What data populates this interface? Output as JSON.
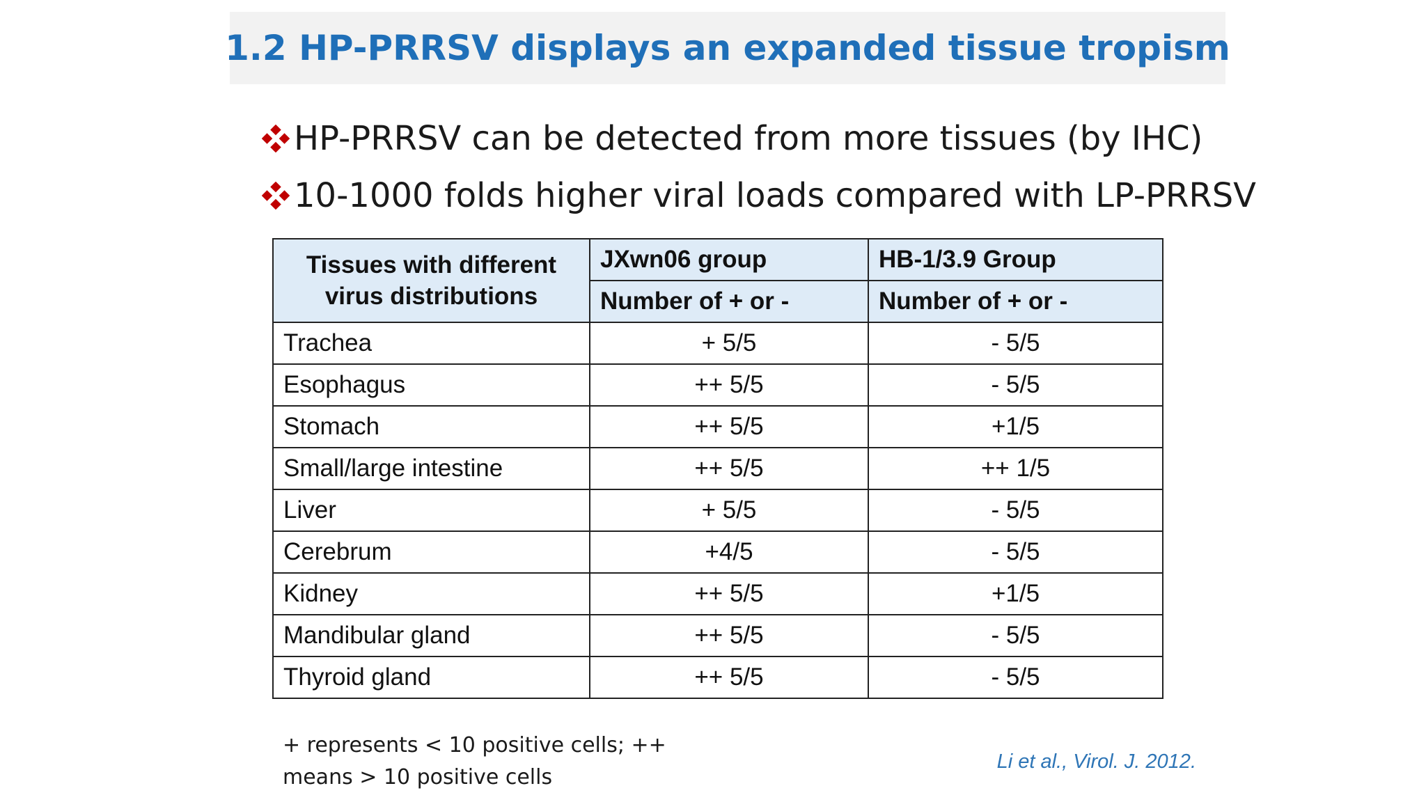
{
  "slide": {
    "title": "1.2 HP-PRRSV displays an expanded tissue tropism",
    "bullets": [
      {
        "icon": "diamond-bullet-icon",
        "text": "HP-PRRSV can be detected from more tissues (by IHC)"
      },
      {
        "icon": "diamond-bullet-icon",
        "text": "10-1000 folds higher viral loads compared with LP-PRRSV"
      }
    ],
    "accent_color": "#1f6fb8",
    "bullet_color": "#c00000"
  },
  "table": {
    "row_header": "Tissues with different virus distributions",
    "groups": [
      "JXwn06 group",
      "HB-1/3.9 Group"
    ],
    "subheaders": [
      "Number of + or -",
      "Number of + or -"
    ],
    "rows": [
      {
        "tissue": "Trachea",
        "values": [
          "+ 5/5",
          "- 5/5"
        ]
      },
      {
        "tissue": "Esophagus",
        "values": [
          "++ 5/5",
          "- 5/5"
        ]
      },
      {
        "tissue": "Stomach",
        "values": [
          "++ 5/5",
          "+1/5"
        ]
      },
      {
        "tissue": "Small/large intestine",
        "values": [
          "++ 5/5",
          "++ 1/5"
        ]
      },
      {
        "tissue": "Liver",
        "values": [
          "+ 5/5",
          "- 5/5"
        ]
      },
      {
        "tissue": "Cerebrum",
        "values": [
          "+4/5",
          "- 5/5"
        ]
      },
      {
        "tissue": "Kidney",
        "values": [
          "++ 5/5",
          "+1/5"
        ]
      },
      {
        "tissue": "Mandibular gland",
        "values": [
          "++ 5/5",
          "- 5/5"
        ]
      },
      {
        "tissue": "Thyroid gland",
        "values": [
          "++ 5/5",
          "- 5/5"
        ]
      }
    ]
  },
  "footnote": "+ represents < 10 positive cells; ++ means > 10 positive cells",
  "citation": "Li et al., Virol. J. 2012."
}
